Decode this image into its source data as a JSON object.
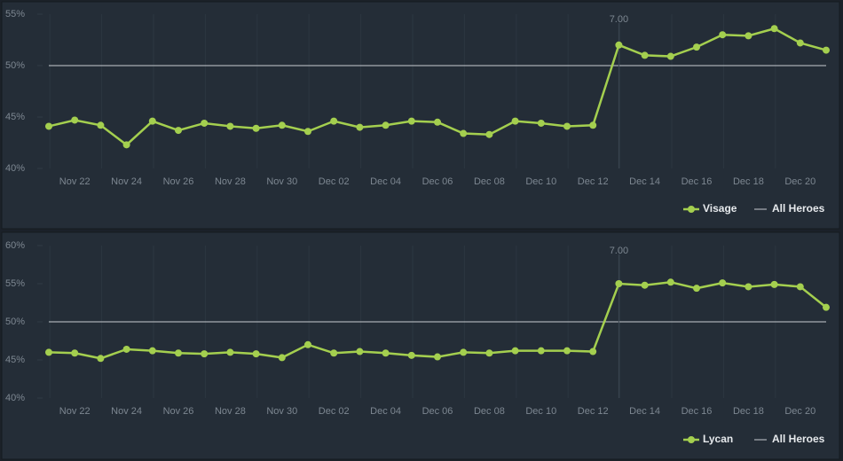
{
  "chart_data": [
    {
      "type": "line",
      "ylim": [
        40,
        55
      ],
      "yticks": [
        {
          "value": 40,
          "label": "40%"
        },
        {
          "value": 45,
          "label": "45%"
        },
        {
          "value": 50,
          "label": "50%"
        },
        {
          "value": 55,
          "label": "55%"
        }
      ],
      "categories": [
        null,
        "Nov 22",
        null,
        "Nov 24",
        null,
        "Nov 26",
        null,
        "Nov 28",
        null,
        "Nov 30",
        null,
        "Dec 02",
        null,
        "Dec 04",
        null,
        "Dec 06",
        null,
        "Dec 08",
        null,
        "Dec 10",
        null,
        "Dec 12",
        null,
        "Dec 14",
        null,
        "Dec 16",
        null,
        "Dec 18",
        null,
        "Dec 20",
        null
      ],
      "series": [
        {
          "name": "Visage",
          "color": "#a4cf4f",
          "values": [
            44.1,
            44.7,
            44.2,
            42.3,
            44.6,
            43.7,
            44.4,
            44.1,
            43.9,
            44.2,
            43.6,
            44.6,
            44.0,
            44.2,
            44.6,
            44.5,
            43.4,
            43.3,
            44.6,
            44.4,
            44.1,
            44.2,
            52.0,
            51.0,
            50.9,
            51.8,
            53.0,
            52.9,
            53.6,
            52.2,
            51.5
          ]
        }
      ],
      "reference_line": {
        "name": "All Heroes",
        "value": 50,
        "color": "#c8ccd0"
      },
      "annotation": {
        "label": "7.00",
        "index": 22
      },
      "grid": true
    },
    {
      "type": "line",
      "ylim": [
        40,
        60
      ],
      "yticks": [
        {
          "value": 40,
          "label": "40%"
        },
        {
          "value": 45,
          "label": "45%"
        },
        {
          "value": 50,
          "label": "50%"
        },
        {
          "value": 55,
          "label": "55%"
        },
        {
          "value": 60,
          "label": "60%"
        }
      ],
      "categories": [
        null,
        "Nov 22",
        null,
        "Nov 24",
        null,
        "Nov 26",
        null,
        "Nov 28",
        null,
        "Nov 30",
        null,
        "Dec 02",
        null,
        "Dec 04",
        null,
        "Dec 06",
        null,
        "Dec 08",
        null,
        "Dec 10",
        null,
        "Dec 12",
        null,
        "Dec 14",
        null,
        "Dec 16",
        null,
        "Dec 18",
        null,
        "Dec 20",
        null
      ],
      "series": [
        {
          "name": "Lycan",
          "color": "#a4cf4f",
          "values": [
            46.0,
            45.9,
            45.2,
            46.4,
            46.2,
            45.9,
            45.8,
            46.0,
            45.8,
            45.3,
            47.0,
            45.9,
            46.1,
            45.9,
            45.6,
            45.4,
            46.0,
            45.9,
            46.2,
            46.2,
            46.2,
            46.1,
            55.0,
            54.8,
            55.2,
            54.4,
            55.1,
            54.6,
            54.9,
            54.6,
            51.9
          ]
        }
      ],
      "reference_line": {
        "name": "All Heroes",
        "value": 50,
        "color": "#c8ccd0"
      },
      "annotation": {
        "label": "7.00",
        "index": 22
      },
      "grid": true
    }
  ]
}
